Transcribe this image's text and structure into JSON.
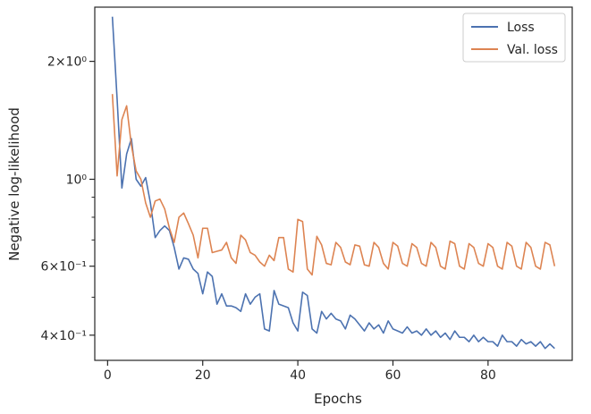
{
  "chart_data": {
    "type": "line",
    "xlabel": "Epochs",
    "ylabel": "Negative log-likelihood",
    "yscale": "log",
    "xlim": [
      -2.7,
      97.7
    ],
    "ylim": [
      0.345,
      2.75
    ],
    "x_ticks": [
      0,
      20,
      40,
      60,
      80
    ],
    "x_tick_labels": [
      "0",
      "20",
      "40",
      "60",
      "80"
    ],
    "y_major_ticks": [
      0.4,
      0.6,
      1.0,
      2.0
    ],
    "y_major_tick_labels": [
      "4×10⁻¹",
      "6×10⁻¹",
      "10⁰",
      "2×10⁰"
    ],
    "y_minor_ticks": [
      0.5,
      0.7,
      0.8,
      0.9
    ],
    "grid": false,
    "legend_position": "top-right",
    "series": [
      {
        "name": "Loss",
        "color": "#4c72b0",
        "x": [
          1,
          2,
          3,
          4,
          5,
          6,
          7,
          8,
          9,
          10,
          11,
          12,
          13,
          14,
          15,
          16,
          17,
          18,
          19,
          20,
          21,
          22,
          23,
          24,
          25,
          26,
          27,
          28,
          29,
          30,
          31,
          32,
          33,
          34,
          35,
          36,
          37,
          38,
          39,
          40,
          41,
          42,
          43,
          44,
          45,
          46,
          47,
          48,
          49,
          50,
          51,
          52,
          53,
          54,
          55,
          56,
          57,
          58,
          59,
          60,
          61,
          62,
          63,
          64,
          65,
          66,
          67,
          68,
          69,
          70,
          71,
          72,
          73,
          74,
          75,
          76,
          77,
          78,
          79,
          80,
          81,
          82,
          83,
          84,
          85,
          86,
          87,
          88,
          89,
          90,
          91,
          92,
          93,
          94
        ],
        "values": [
          2.6,
          1.6,
          0.95,
          1.16,
          1.27,
          1.0,
          0.96,
          1.01,
          0.87,
          0.71,
          0.74,
          0.76,
          0.74,
          0.67,
          0.59,
          0.63,
          0.625,
          0.59,
          0.575,
          0.51,
          0.58,
          0.565,
          0.48,
          0.51,
          0.475,
          0.475,
          0.47,
          0.46,
          0.51,
          0.48,
          0.5,
          0.51,
          0.415,
          0.41,
          0.52,
          0.48,
          0.475,
          0.47,
          0.43,
          0.41,
          0.515,
          0.505,
          0.415,
          0.405,
          0.46,
          0.44,
          0.455,
          0.44,
          0.435,
          0.415,
          0.45,
          0.44,
          0.425,
          0.41,
          0.43,
          0.415,
          0.425,
          0.405,
          0.435,
          0.415,
          0.41,
          0.405,
          0.42,
          0.405,
          0.41,
          0.4,
          0.415,
          0.4,
          0.41,
          0.395,
          0.405,
          0.39,
          0.41,
          0.395,
          0.395,
          0.385,
          0.4,
          0.385,
          0.395,
          0.385,
          0.385,
          0.375,
          0.4,
          0.385,
          0.385,
          0.375,
          0.39,
          0.38,
          0.385,
          0.375,
          0.385,
          0.37,
          0.38,
          0.37
        ]
      },
      {
        "name": "Val. loss",
        "color": "#dd8452",
        "x": [
          1,
          2,
          3,
          4,
          5,
          6,
          7,
          8,
          9,
          10,
          11,
          12,
          13,
          14,
          15,
          16,
          17,
          18,
          19,
          20,
          21,
          22,
          23,
          24,
          25,
          26,
          27,
          28,
          29,
          30,
          31,
          32,
          33,
          34,
          35,
          36,
          37,
          38,
          39,
          40,
          41,
          42,
          43,
          44,
          45,
          46,
          47,
          48,
          49,
          50,
          51,
          52,
          53,
          54,
          55,
          56,
          57,
          58,
          59,
          60,
          61,
          62,
          63,
          64,
          65,
          66,
          67,
          68,
          69,
          70,
          71,
          72,
          73,
          74,
          75,
          76,
          77,
          78,
          79,
          80,
          81,
          82,
          83,
          84,
          85,
          86,
          87,
          88,
          89,
          90,
          91,
          92,
          93,
          94
        ],
        "values": [
          1.65,
          1.02,
          1.42,
          1.54,
          1.22,
          1.05,
          1.0,
          0.87,
          0.8,
          0.88,
          0.89,
          0.84,
          0.75,
          0.69,
          0.8,
          0.82,
          0.77,
          0.72,
          0.63,
          0.75,
          0.75,
          0.65,
          0.655,
          0.66,
          0.69,
          0.63,
          0.61,
          0.72,
          0.7,
          0.65,
          0.64,
          0.615,
          0.6,
          0.64,
          0.62,
          0.71,
          0.71,
          0.59,
          0.58,
          0.79,
          0.78,
          0.59,
          0.57,
          0.715,
          0.68,
          0.61,
          0.605,
          0.69,
          0.67,
          0.615,
          0.605,
          0.68,
          0.675,
          0.605,
          0.6,
          0.69,
          0.67,
          0.61,
          0.59,
          0.69,
          0.675,
          0.61,
          0.6,
          0.685,
          0.67,
          0.61,
          0.6,
          0.69,
          0.67,
          0.6,
          0.59,
          0.695,
          0.685,
          0.6,
          0.59,
          0.685,
          0.67,
          0.61,
          0.6,
          0.685,
          0.67,
          0.6,
          0.59,
          0.69,
          0.675,
          0.6,
          0.59,
          0.69,
          0.67,
          0.6,
          0.59,
          0.69,
          0.68,
          0.6
        ]
      }
    ]
  }
}
